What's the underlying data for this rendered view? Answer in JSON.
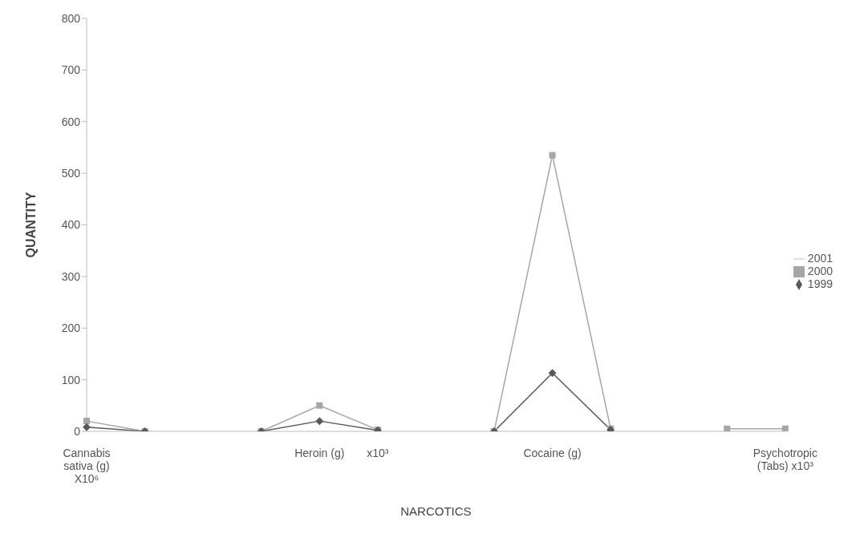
{
  "chart_data": {
    "type": "line",
    "xlabel": "NARCOTICS",
    "ylabel": "QUANTITY",
    "categories": [
      "Cannabis sativa (g) X10⁶",
      null,
      null,
      null,
      "Heroin (g)",
      "x10³",
      null,
      null,
      "Cocaine (g)",
      null,
      null,
      null,
      "Psychotropic (Tabs) x10³"
    ],
    "series": [
      {
        "name": "2001",
        "color": "#d9d9d9",
        "marker": "none",
        "values": [
          null,
          null,
          null,
          null,
          null,
          null,
          null,
          null,
          null,
          null,
          null,
          null,
          null
        ]
      },
      {
        "name": "2000",
        "color": "#a6a6a6",
        "marker": "square",
        "values": [
          20,
          0,
          null,
          0,
          50,
          3,
          null,
          0,
          535,
          5,
          null,
          5,
          5
        ]
      },
      {
        "name": "1999",
        "color": "#595959",
        "marker": "diamond",
        "values": [
          8,
          0,
          null,
          0,
          20,
          2,
          null,
          0,
          113,
          3,
          null,
          null,
          null
        ]
      }
    ],
    "ylim": [
      0,
      800
    ],
    "yticks": [
      0,
      100,
      200,
      300,
      400,
      500,
      600,
      700,
      800
    ],
    "grid": false,
    "legend": "right"
  }
}
